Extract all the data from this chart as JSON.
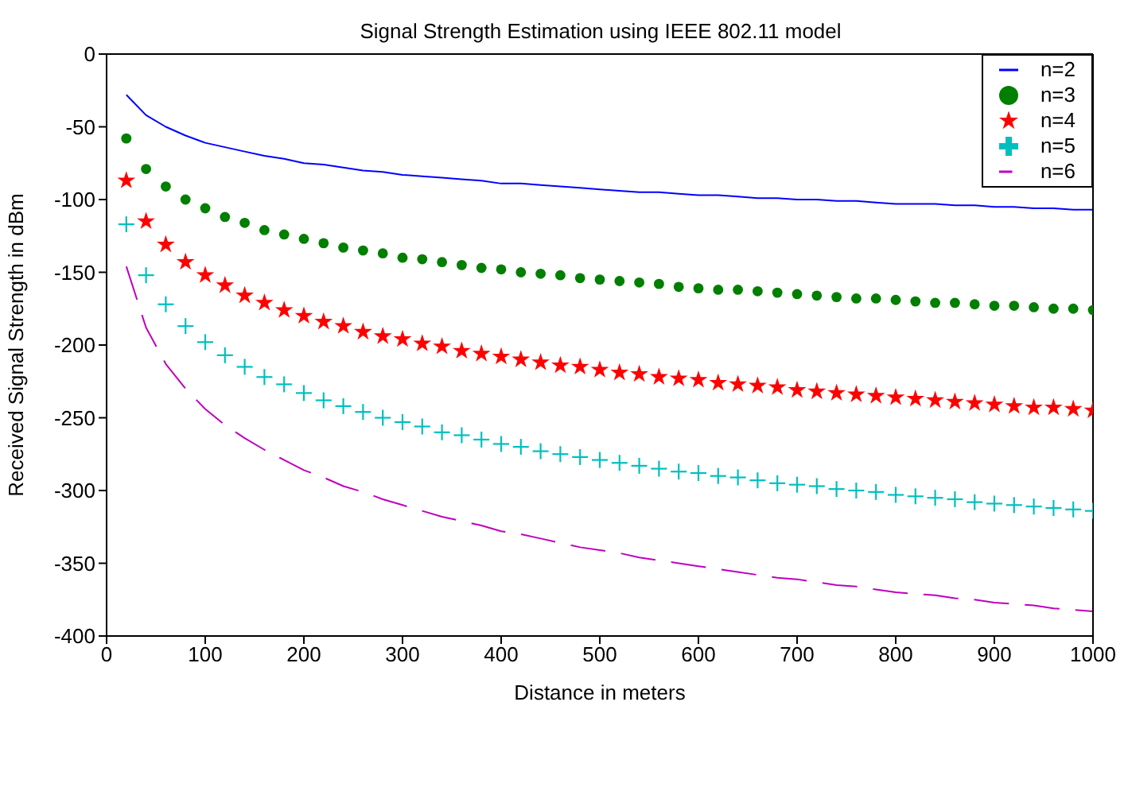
{
  "chart_data": {
    "type": "line",
    "title": "Signal Strength Estimation using IEEE 802.11 model",
    "xlabel": "Distance in meters",
    "ylabel": "Received Signal Strength in dBm",
    "x": [
      20,
      40,
      60,
      80,
      100,
      120,
      140,
      160,
      180,
      200,
      220,
      240,
      260,
      280,
      300,
      320,
      340,
      360,
      380,
      400,
      420,
      440,
      460,
      480,
      500,
      520,
      540,
      560,
      580,
      600,
      620,
      640,
      660,
      680,
      700,
      720,
      740,
      760,
      780,
      800,
      820,
      840,
      860,
      880,
      900,
      920,
      940,
      960,
      980,
      1000
    ],
    "xlim": [
      0,
      1000
    ],
    "xticks": [
      0,
      100,
      200,
      300,
      400,
      500,
      600,
      700,
      800,
      900,
      1000
    ],
    "ylim": [
      -400,
      0
    ],
    "yticks": [
      -400,
      -350,
      -300,
      -250,
      -200,
      -150,
      -100,
      -50,
      0
    ],
    "grid": false,
    "legend": "top right",
    "series": [
      {
        "name": "n=2",
        "line_style": "solid",
        "color": "#0000ff",
        "values": [
          -28,
          -42,
          -50,
          -56,
          -61,
          -64,
          -67,
          -70,
          -72,
          -75,
          -76,
          -78,
          -80,
          -81,
          -83,
          -84,
          -85,
          -86,
          -87,
          -89,
          -89,
          -90,
          -91,
          -92,
          -93,
          -94,
          -95,
          -95,
          -96,
          -97,
          -97,
          -98,
          -99,
          -99,
          -100,
          -100,
          -101,
          -101,
          -102,
          -103,
          -103,
          -103,
          -104,
          -104,
          -105,
          -105,
          -106,
          -106,
          -107,
          -107
        ]
      },
      {
        "name": "n=3",
        "type": "scatter",
        "marker": "circle",
        "color": "#007f00",
        "values": [
          -58,
          -79,
          -91,
          -100,
          -106,
          -112,
          -116,
          -121,
          -124,
          -127,
          -130,
          -133,
          -135,
          -137,
          -140,
          -141,
          -143,
          -145,
          -147,
          -148,
          -150,
          -151,
          -152,
          -154,
          -155,
          -156,
          -157,
          -158,
          -160,
          -161,
          -162,
          -162,
          -163,
          -164,
          -165,
          -166,
          -167,
          -168,
          -168,
          -169,
          -170,
          -171,
          -171,
          -172,
          -173,
          -173,
          -174,
          -175,
          -175,
          -176
        ]
      },
      {
        "name": "n=4",
        "type": "scatter",
        "marker": "star",
        "color": "#ff0000",
        "values": [
          -87,
          -115,
          -131,
          -143,
          -152,
          -159,
          -166,
          -171,
          -176,
          -180,
          -184,
          -187,
          -191,
          -194,
          -196,
          -199,
          -201,
          -204,
          -206,
          -208,
          -210,
          -212,
          -214,
          -215,
          -217,
          -219,
          -220,
          -222,
          -223,
          -224,
          -226,
          -227,
          -228,
          -229,
          -231,
          -232,
          -233,
          -234,
          -235,
          -236,
          -237,
          -238,
          -239,
          -240,
          -241,
          -242,
          -243,
          -243,
          -244,
          -245
        ]
      },
      {
        "name": "n=5",
        "type": "scatter",
        "marker": "cross",
        "color": "#00bfbf",
        "values": [
          -117,
          -152,
          -172,
          -187,
          -198,
          -207,
          -215,
          -222,
          -227,
          -233,
          -238,
          -242,
          -246,
          -250,
          -253,
          -256,
          -260,
          -262,
          -265,
          -268,
          -270,
          -273,
          -275,
          -277,
          -279,
          -281,
          -283,
          -285,
          -287,
          -288,
          -290,
          -291,
          -293,
          -295,
          -296,
          -297,
          -299,
          -300,
          -301,
          -303,
          -304,
          -305,
          -306,
          -308,
          -309,
          -310,
          -311,
          -312,
          -313,
          -314
        ]
      },
      {
        "name": "n=6",
        "line_style": "dashed",
        "color": "#bf00bf",
        "values": [
          -146,
          -188,
          -213,
          -230,
          -244,
          -255,
          -264,
          -272,
          -279,
          -286,
          -291,
          -297,
          -301,
          -306,
          -310,
          -314,
          -318,
          -321,
          -324,
          -328,
          -330,
          -333,
          -336,
          -339,
          -341,
          -343,
          -346,
          -348,
          -350,
          -352,
          -354,
          -356,
          -358,
          -360,
          -361,
          -363,
          -365,
          -366,
          -368,
          -370,
          -371,
          -372,
          -374,
          -375,
          -377,
          -378,
          -379,
          -381,
          -382,
          -383
        ]
      }
    ]
  }
}
